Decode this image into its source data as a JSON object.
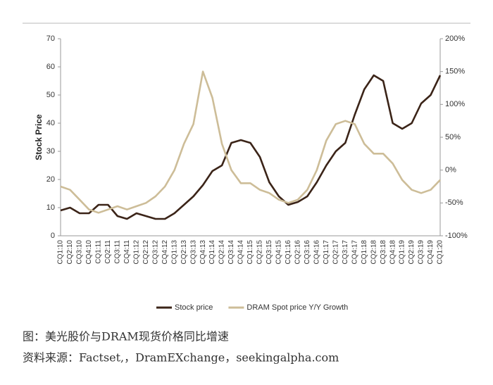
{
  "chart_data": {
    "type": "line",
    "y_label": "Stock Price",
    "categories": [
      "CQ1:10",
      "CQ2:10",
      "CQ3:10",
      "CQ4:10",
      "CQ1:11",
      "CQ2:11",
      "CQ3:11",
      "CQ4:11",
      "CQ1:12",
      "CQ2:12",
      "CQ3:12",
      "CQ4:12",
      "CQ1:13",
      "CQ2:13",
      "CQ3:13",
      "CQ4:13",
      "CQ1:14",
      "CQ2:14",
      "CQ3:14",
      "CQ4:14",
      "CQ1:15",
      "CQ2:15",
      "CQ3:15",
      "CQ4:15",
      "CQ1:16",
      "CQ2:16",
      "CQ3:16",
      "CQ4:16",
      "CQ1:17",
      "CQ2:17",
      "CQ3:17",
      "CQ4:17",
      "CQ1:18",
      "CQ2:18",
      "CQ3:18",
      "CQ4:18",
      "CQ1:19",
      "CQ2:19",
      "CQ3:19",
      "CQ4:19",
      "CQ1:20"
    ],
    "series": [
      {
        "name": "Stock price",
        "color": "#3b2418",
        "values": [
          9,
          10,
          8,
          8,
          11,
          11,
          7,
          6,
          8,
          7,
          6,
          6,
          8,
          11,
          14,
          18,
          23,
          25,
          33,
          34,
          33,
          28,
          19,
          14,
          11,
          12,
          14,
          19,
          25,
          30,
          33,
          43,
          52,
          57,
          55,
          40,
          38,
          40,
          47,
          50,
          57
        ]
      },
      {
        "name": "DRAM Spot price Y/Y Growth",
        "color": "#cdbd98",
        "axis": "y2",
        "values": [
          -25,
          -30,
          -45,
          -60,
          -65,
          -60,
          -55,
          -60,
          -55,
          -50,
          -40,
          -25,
          0,
          40,
          70,
          150,
          110,
          40,
          0,
          -20,
          -20,
          -30,
          -35,
          -45,
          -50,
          -45,
          -30,
          0,
          45,
          70,
          75,
          70,
          40,
          25,
          25,
          10,
          -15,
          -30,
          -35,
          -30,
          -15
        ]
      }
    ],
    "ylim": [
      0,
      70
    ],
    "yticks": [
      0,
      10,
      20,
      30,
      40,
      50,
      60,
      70
    ],
    "y2lim": [
      -100,
      200
    ],
    "y2ticks": [
      {
        "value": -100,
        "label": "-100%"
      },
      {
        "value": -50,
        "label": "-50%"
      },
      {
        "value": 0,
        "label": "0%"
      },
      {
        "value": 50,
        "label": "50%"
      },
      {
        "value": 100,
        "label": "100%"
      },
      {
        "value": 150,
        "label": "150%"
      },
      {
        "value": 200,
        "label": "200%"
      }
    ],
    "legend": "bottom"
  },
  "caption": {
    "title": "图：美光股价与DRAM现货价格同比增速",
    "source": "资料来源：Factset,，DramEXchange，seekingalpha.com"
  }
}
